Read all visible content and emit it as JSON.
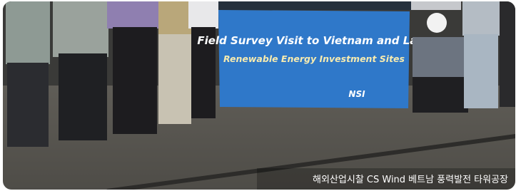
{
  "banner": {
    "title": "Field Survey Visit to Vietnam and Laos",
    "subtitle": "Renewable Energy Investment Sites",
    "logo": "NSI"
  },
  "caption": "해외산업시찰 CS Wind 베트남 풍력발전 타워공장"
}
